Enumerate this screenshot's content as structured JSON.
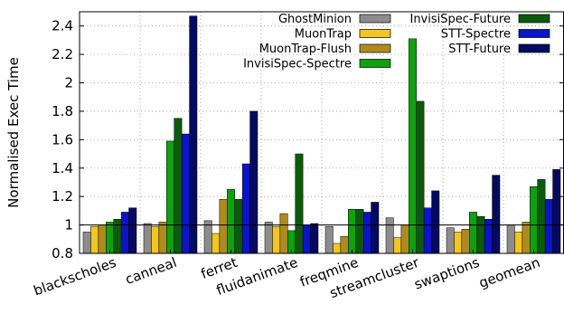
{
  "chart_data": {
    "type": "bar",
    "title": "",
    "xlabel": "",
    "ylabel": "Normalised Exec Time",
    "ylim": [
      0.8,
      2.5
    ],
    "yticks": [
      0.8,
      1,
      1.2,
      1.4,
      1.6,
      1.8,
      2,
      2.2,
      2.4
    ],
    "ytick_labels": [
      "0.8",
      "1",
      "1.2",
      "1.4",
      "1.6",
      "1.8",
      "2",
      "2.2",
      "2.4"
    ],
    "reference_line": 1.0,
    "grid": "dotted",
    "legend_placement": "top, inside plot, two columns",
    "categories": [
      "blackscholes",
      "canneal",
      "ferret",
      "fluidanimate",
      "freqmine",
      "streamcluster",
      "swaptions",
      "geomean"
    ],
    "series": [
      {
        "name": "GhostMinion",
        "color": "#8c8c8c",
        "values": [
          0.95,
          1.01,
          1.03,
          1.02,
          0.99,
          1.05,
          0.98,
          1.0
        ]
      },
      {
        "name": "MuonTrap",
        "color": "#f2c523",
        "values": [
          0.99,
          0.99,
          0.94,
          0.99,
          0.87,
          0.91,
          0.95,
          0.95
        ]
      },
      {
        "name": "MuonTrap-Flush",
        "color": "#b08a1e",
        "values": [
          1.0,
          1.02,
          1.18,
          1.08,
          0.92,
          1.0,
          0.97,
          1.02
        ]
      },
      {
        "name": "InvisiSpec-Spectre",
        "color": "#10a010",
        "values": [
          1.02,
          1.59,
          1.25,
          0.96,
          1.11,
          2.31,
          1.09,
          1.27
        ]
      },
      {
        "name": "InvisiSpec-Future",
        "color": "#0c5a0c",
        "values": [
          1.04,
          1.75,
          1.18,
          1.5,
          1.11,
          1.87,
          1.06,
          1.32
        ]
      },
      {
        "name": "STT-Spectre",
        "color": "#0a14c8",
        "values": [
          1.09,
          1.64,
          1.43,
          1.0,
          1.09,
          1.12,
          1.04,
          1.18
        ]
      },
      {
        "name": "STT-Future",
        "color": "#050a60",
        "values": [
          1.12,
          2.47,
          1.8,
          1.01,
          1.16,
          1.24,
          1.35,
          1.39
        ]
      }
    ]
  }
}
